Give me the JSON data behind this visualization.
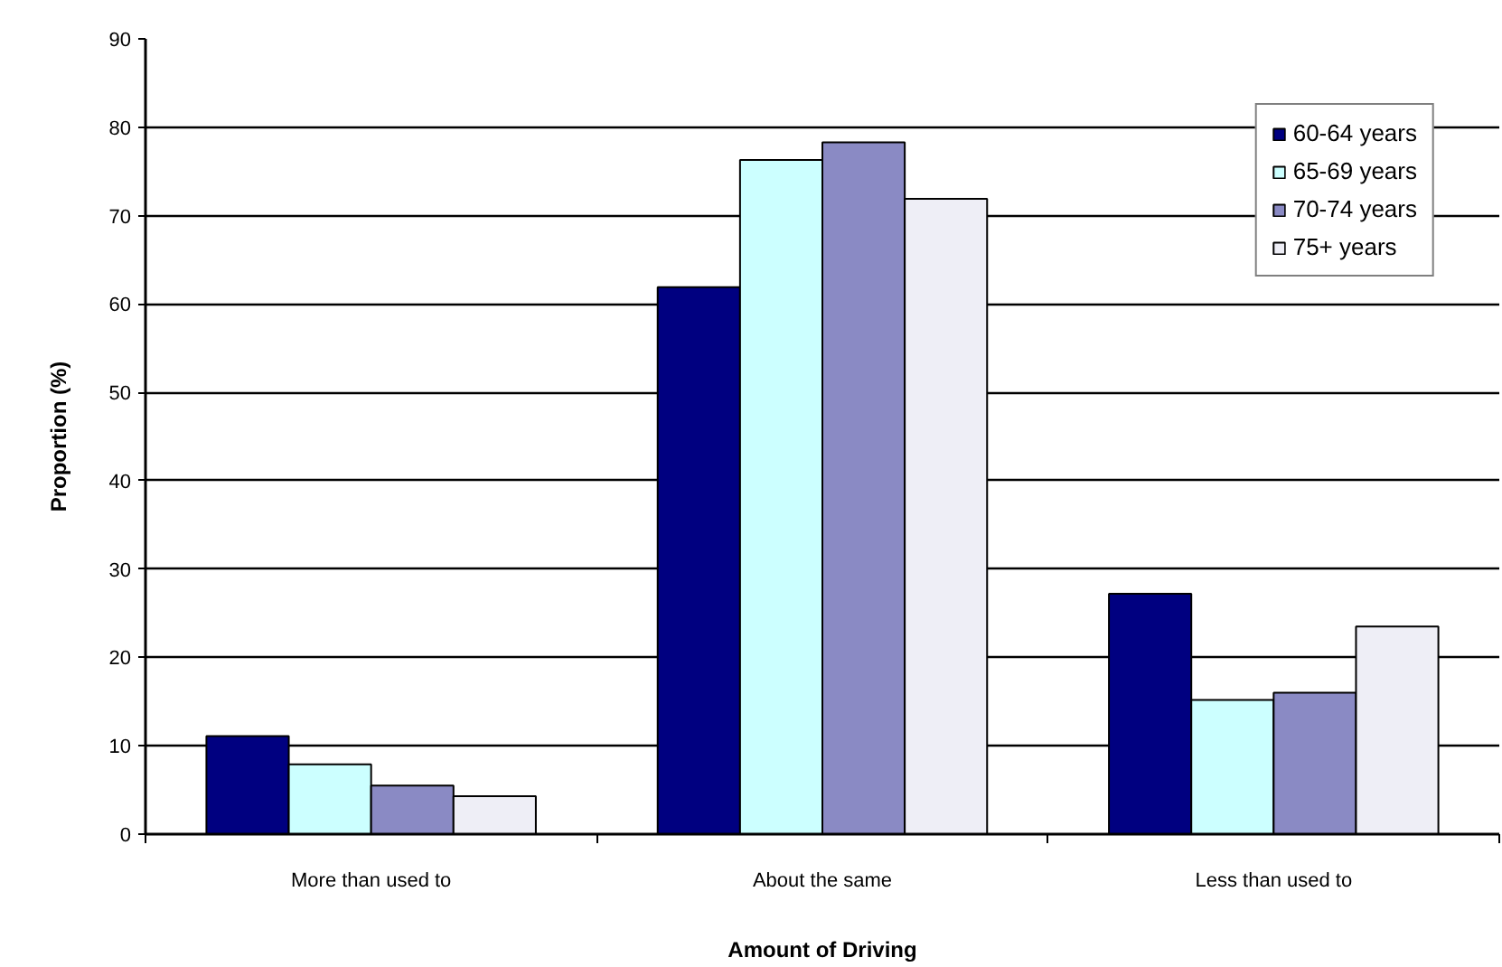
{
  "chart_data": {
    "type": "bar",
    "xlabel": "Amount of Driving",
    "ylabel": "Proportion (%)",
    "categories": [
      "More than used to",
      "About the same",
      "Less than used to"
    ],
    "series": [
      {
        "name": "60-64 years",
        "color": "#000080",
        "values": [
          11.1,
          61.9,
          27.2
        ]
      },
      {
        "name": "65-69 years",
        "color": "#ccffff",
        "values": [
          7.9,
          76.3,
          15.2
        ]
      },
      {
        "name": "70-74 years",
        "color": "#8a8ac4",
        "values": [
          5.5,
          78.3,
          16.0
        ]
      },
      {
        "name": "75+ years",
        "color": "#eeeef6",
        "values": [
          4.3,
          71.9,
          23.5
        ]
      }
    ],
    "ylim": [
      0,
      90
    ],
    "yticks": [
      0,
      10,
      20,
      30,
      40,
      50,
      60,
      70,
      80,
      90
    ],
    "grid": "y",
    "legend": "top right"
  }
}
